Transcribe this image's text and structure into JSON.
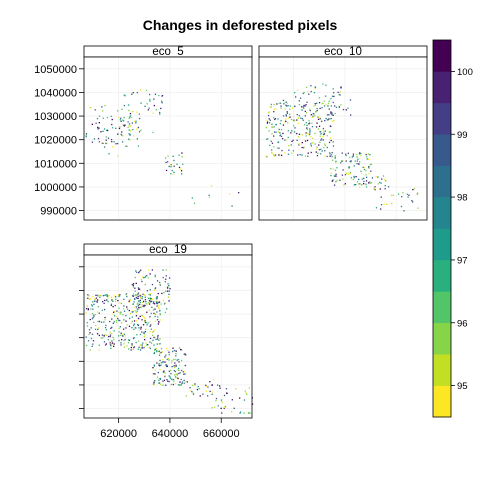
{
  "chart_data": {
    "type": "scatter",
    "title": "Changes in deforested pixels",
    "xlabel": "",
    "ylabel": "",
    "xlim": [
      606500,
      672000
    ],
    "ylim": [
      986000,
      1055000
    ],
    "x_ticks": [
      620000,
      640000,
      660000
    ],
    "x_tick_labels": [
      "620000",
      "640000",
      "660000"
    ],
    "y_ticks": [
      990000,
      1000000,
      1010000,
      1020000,
      1030000,
      1040000,
      1050000
    ],
    "y_tick_labels": [
      "990000",
      "1000000",
      "1010000",
      "1020000",
      "1030000",
      "1040000",
      "1050000"
    ],
    "panels": [
      {
        "name": "eco_5",
        "clusters": [
          {
            "x": [
              607000,
              628000
            ],
            "y": [
              1017000,
              1035000
            ],
            "n": 80
          },
          {
            "x": [
              620000,
              637000
            ],
            "y": [
              1023000,
              1043000
            ],
            "n": 50
          },
          {
            "x": [
              638000,
              645000
            ],
            "y": [
              1005000,
              1015000
            ],
            "n": 25
          },
          {
            "x": [
              610000,
              620000
            ],
            "y": [
              1012000,
              1021000
            ],
            "n": 8
          },
          {
            "x": [
              648000,
              667000
            ],
            "y": [
              992000,
              1002000
            ],
            "n": 8
          }
        ]
      },
      {
        "name": "eco_10",
        "clusters": [
          {
            "x": [
              609000,
              636000
            ],
            "y": [
              1013000,
              1037000
            ],
            "n": 280
          },
          {
            "x": [
              620000,
              642000
            ],
            "y": [
              1028000,
              1044000
            ],
            "n": 60
          },
          {
            "x": [
              634000,
              650000
            ],
            "y": [
              1001000,
              1015000
            ],
            "n": 110
          },
          {
            "x": [
              645000,
              657000
            ],
            "y": [
              999000,
              1005000
            ],
            "n": 25
          },
          {
            "x": [
              652000,
              670000
            ],
            "y": [
              990000,
              1001000
            ],
            "n": 25
          }
        ]
      },
      {
        "name": "eco_19",
        "clusters": [
          {
            "x": [
              607000,
              636000
            ],
            "y": [
              1015000,
              1039000
            ],
            "n": 380
          },
          {
            "x": [
              625000,
              640000
            ],
            "y": [
              1030000,
              1049000
            ],
            "n": 120
          },
          {
            "x": [
              633000,
              646000
            ],
            "y": [
              1000000,
              1016000
            ],
            "n": 150
          },
          {
            "x": [
              644000,
              660000
            ],
            "y": [
              995000,
              1003000
            ],
            "n": 30
          },
          {
            "x": [
              656000,
              672000
            ],
            "y": [
              988000,
              1000000
            ],
            "n": 35
          }
        ]
      }
    ],
    "colorkey": {
      "min": 94.5,
      "max": 100.5,
      "step": 0.5,
      "tick_values": [
        95,
        96,
        97,
        98,
        99,
        100
      ],
      "tick_labels": [
        "95",
        "96",
        "97",
        "98",
        "99",
        "100"
      ],
      "colors": [
        "#FDE725",
        "#C2DF23",
        "#86D549",
        "#52C569",
        "#2AB07F",
        "#1E9B8A",
        "#25858E",
        "#2D708E",
        "#38598C",
        "#433E85",
        "#482173",
        "#440154"
      ]
    },
    "grid": true,
    "legend": "right"
  }
}
